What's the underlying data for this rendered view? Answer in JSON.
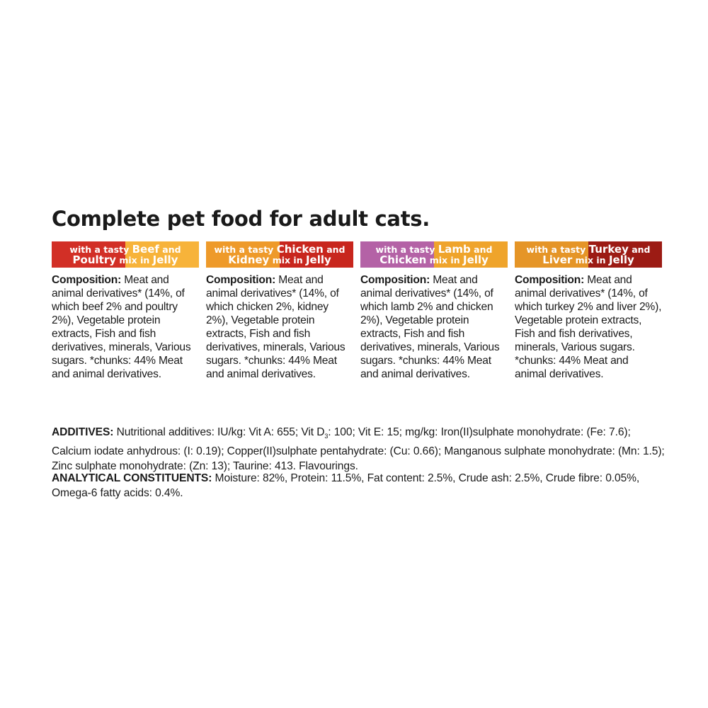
{
  "title": "Complete pet food for adult cats.",
  "variants": [
    {
      "l1a": "with a tasty",
      "l1b": "Beef",
      "l1c": "and",
      "l2a": "Poultry",
      "l2b": "mix in",
      "l2c": "Jelly",
      "colors": [
        "#d22f26",
        "#f7b33a"
      ],
      "label": "Composition:",
      "text": " Meat and animal derivatives* (14%, of which beef 2% and poultry 2%), Vegetable protein extracts, Fish and fish derivatives, minerals, Various sugars. *chunks: 44% Meat and animal derivatives."
    },
    {
      "l1a": "with a tasty",
      "l1b": "Chicken",
      "l1c": "and",
      "l2a": "Kidney",
      "l2b": "mix in",
      "l2c": "Jelly",
      "colors": [
        "#ee9a2a",
        "#c8261d"
      ],
      "label": "Composition:",
      "text": " Meat and animal derivatives* (14%, of which chicken 2%, kidney 2%), Vegetable protein extracts, Fish and fish derivatives, minerals, Various sugars. *chunks: 44% Meat and animal derivatives."
    },
    {
      "l1a": "with a tasty",
      "l1b": "Lamb",
      "l1c": "and",
      "l2a": "Chicken",
      "l2b": "mix in",
      "l2c": "Jelly",
      "colors": [
        "#b462a6",
        "#efa42b"
      ],
      "label": "Composition:",
      "text": " Meat and animal derivatives* (14%, of which lamb 2% and chicken 2%), Vegetable protein extracts, Fish and fish derivatives, minerals, Various sugars. *chunks: 44% Meat and animal derivatives."
    },
    {
      "l1a": "with a tasty",
      "l1b": "Turkey",
      "l1c": "and",
      "l2a": "Liver",
      "l2b": "mix in",
      "l2c": "Jelly",
      "colors": [
        "#e59527",
        "#9c1b14"
      ],
      "label": "Composition:",
      "text": " Meat and animal derivatives* (14%, of which turkey 2% and liver 2%), Vegetable protein extracts, Fish and fish derivatives, minerals, Various sugars. *chunks: 44% Meat and animal derivatives."
    }
  ],
  "additives": {
    "label": "ADDITIVES:",
    "t1": " Nutritional additives: IU/kg: Vit A: 655; Vit D",
    "sub": "3",
    "t2": ": 100; Vit E: 15; mg/kg: Iron(II)sulphate monohydrate: (Fe: 7.6); Calcium iodate anhydrous: (I: 0.19); Copper(II)sulphate pentahydrate: (Cu: 0.66); Manganous sulphate monohydrate: (Mn: 1.5); Zinc sulphate monohydrate: (Zn: 13); Taurine: 413. Flavourings."
  },
  "analytical": {
    "label": "ANALYTICAL CONSTITUENTS:",
    "text": " Moisture: 82%, Protein: 11.5%, Fat content: 2.5%, Crude ash: 2.5%, Crude fibre: 0.05%, Omega-6 fatty acids: 0.4%."
  }
}
